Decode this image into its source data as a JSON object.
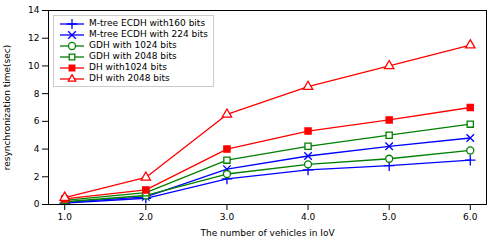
{
  "chart_data": {
    "type": "line",
    "x": [
      1,
      2,
      3,
      4,
      5,
      6
    ],
    "series": [
      {
        "name": "M-tree ECDH with160 bits",
        "color": "blue",
        "marker": "plus",
        "values": [
          0.1,
          0.45,
          1.85,
          2.5,
          2.8,
          3.2
        ]
      },
      {
        "name": "M-tree ECDH with 224 bits",
        "color": "blue",
        "marker": "cross",
        "values": [
          0.15,
          0.55,
          2.55,
          3.5,
          4.2,
          4.8
        ]
      },
      {
        "name": "GDH with 1024 bits",
        "color": "green",
        "marker": "circle",
        "values": [
          0.2,
          0.65,
          2.2,
          2.9,
          3.3,
          3.9
        ]
      },
      {
        "name": "GDH with 2048 bits",
        "color": "green",
        "marker": "square",
        "values": [
          0.3,
          0.85,
          3.2,
          4.2,
          5.0,
          5.8
        ]
      },
      {
        "name": "DH with1024 bits",
        "color": "red",
        "marker": "filled-square",
        "values": [
          0.4,
          1.05,
          4.0,
          5.3,
          6.1,
          7.0
        ]
      },
      {
        "name": "DH with 2048 bits",
        "color": "red",
        "marker": "triangle",
        "values": [
          0.5,
          1.95,
          6.5,
          8.5,
          10.0,
          11.5
        ]
      }
    ],
    "xlabel": "The number of vehicles in IoV",
    "ylabel": "resynchronization time(sec)",
    "xlim": [
      0.8,
      6.2
    ],
    "ylim": [
      0,
      14
    ],
    "xticks": [
      1,
      2,
      3,
      4,
      5,
      6
    ],
    "yticks": [
      0,
      2,
      4,
      6,
      8,
      10,
      12,
      14
    ],
    "legend": "upper left",
    "grid": false
  }
}
